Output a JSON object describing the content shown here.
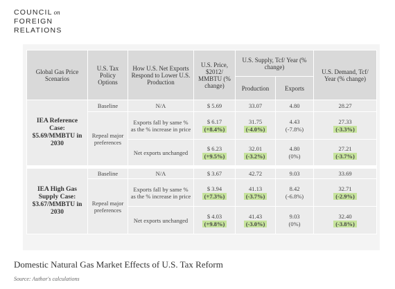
{
  "logo": {
    "line1": "COUNCIL",
    "small": "on",
    "line2": "FOREIGN",
    "line3": "RELATIONS"
  },
  "table": {
    "headers": [
      "Global Gas Price Scenarios",
      "U.S. Tax Policy Options",
      "How U.S. Net Exports Respond to Lower U.S. Production",
      "U.S. Price, $2012/ MMBTU (% change)",
      "U.S. Supply, Tcf/ Year (% change)",
      "U.S. Demand, Tcf/ Year (% change)"
    ],
    "subheaders": [
      "Production",
      "Exports"
    ],
    "sections": [
      {
        "scenario": "IEA Reference Case: $5.69/MMBTU in 2030",
        "rows": [
          {
            "policy": "Baseline",
            "response": "N/A",
            "price": "$ 5.69",
            "production": "33.07",
            "exports": "4.80",
            "demand": "28.27"
          },
          {
            "policy": "Repeal major preferences",
            "response": "Exports fall by same % as the % increase in price",
            "price": "$ 6.17",
            "price_change": "(+8.4%)",
            "production": "31.75",
            "production_change": "(-4.0%)",
            "exports": "4.43",
            "exports_change": "(-7.8%)",
            "demand": "27.33",
            "demand_change": "(-3.3%)"
          },
          {
            "response": "Net exports unchanged",
            "price": "$ 6.23",
            "price_change": "(+9.5%)",
            "production": "32.01",
            "production_change": "(-3.2%)",
            "exports": "4.80",
            "exports_change": "(0%)",
            "demand": "27.21",
            "demand_change": "(-3.7%)"
          }
        ]
      },
      {
        "scenario": "IEA High Gas Supply Case: $3.67/MMBTU in 2030",
        "rows": [
          {
            "policy": "Baseline",
            "response": "N/A",
            "price": "$ 3.67",
            "production": "42.72",
            "exports": "9.03",
            "demand": "33.69"
          },
          {
            "policy": "Repeal major preferences",
            "response": "Exports fall by same % as the % increase in price",
            "price": "$ 3.94",
            "price_change": "(+7.3%)",
            "production": "41.13",
            "production_change": "(-3.7%)",
            "exports": "8.42",
            "exports_change": "(-6.8%)",
            "demand": "32.71",
            "demand_change": "(-2.9%)"
          },
          {
            "response": "Net exports unchanged",
            "price": "$ 4.03",
            "price_change": "(+9.8%)",
            "production": "41.43",
            "production_change": "(-3.0%)",
            "exports": "9.03",
            "exports_change": "(0%)",
            "demand": "32.40",
            "demand_change": "(-3.8%)"
          }
        ]
      }
    ]
  },
  "caption": "Domestic Natural Gas Market Effects of U.S. Tax Reform",
  "source": "Source: Author's calculations"
}
